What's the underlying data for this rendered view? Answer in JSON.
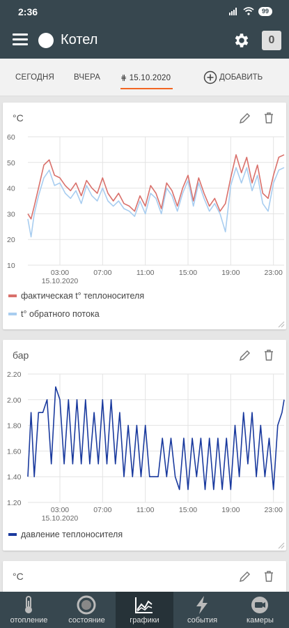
{
  "statusbar": {
    "time": "2:36",
    "battery": "99"
  },
  "appbar": {
    "title": "Котел",
    "counter": "0"
  },
  "tabs": [
    {
      "label": "СЕГОДНЯ"
    },
    {
      "label": "ВЧЕРА"
    },
    {
      "label": "15.10.2020",
      "active": true
    }
  ],
  "add_button": {
    "label": "ДОБАВИТЬ"
  },
  "cards": [
    {
      "unit": "°C",
      "legend": [
        {
          "label": "фактическая t° теплоносителя",
          "color": "#d9706b"
        },
        {
          "label": "t° обратного потока",
          "color": "#a8cdf0"
        }
      ]
    },
    {
      "unit": "бар",
      "legend": [
        {
          "label": "давление теплоносителя",
          "color": "#1a3a9e"
        }
      ]
    },
    {
      "unit": "°C"
    }
  ],
  "chart_data": [
    {
      "type": "line",
      "ylabel": "°C",
      "ylim": [
        10,
        60
      ],
      "yticks": [
        "60",
        "50",
        "40",
        "30",
        "20",
        "10"
      ],
      "xticks": [
        "03:00",
        "07:00",
        "11:00",
        "15:00",
        "19:00",
        "23:00"
      ],
      "xtick_sublabel": "15.10.2020",
      "x_hours": [
        0,
        0.3,
        0.6,
        1,
        1.5,
        2,
        2.5,
        3,
        3.5,
        4,
        4.5,
        5,
        5.5,
        6,
        6.5,
        7,
        7.5,
        8,
        8.5,
        9,
        9.5,
        10,
        10.5,
        11,
        11.5,
        12,
        12.5,
        13,
        13.5,
        14,
        14.5,
        15,
        15.5,
        16,
        16.5,
        17,
        17.5,
        18,
        18.5,
        19,
        19.5,
        20,
        20.5,
        21,
        21.5,
        22,
        22.5,
        23,
        23.5,
        24
      ],
      "series": [
        {
          "name": "фактическая t° теплоносителя",
          "color": "#d9706b",
          "values": [
            30,
            28,
            33,
            40,
            49,
            51,
            45,
            44,
            41,
            39,
            42,
            37,
            43,
            40,
            38,
            44,
            38,
            35,
            38,
            34,
            33,
            31,
            37,
            33,
            41,
            38,
            32,
            42,
            39,
            33,
            40,
            45,
            35,
            44,
            38,
            33,
            36,
            31,
            34,
            44,
            53,
            46,
            52,
            42,
            49,
            38,
            36,
            45,
            52,
            53
          ]
        },
        {
          "name": "t° обратного потока",
          "color": "#a8cdf0",
          "values": [
            28,
            21,
            30,
            37,
            44,
            47,
            41,
            42,
            38,
            36,
            39,
            34,
            41,
            37,
            35,
            40,
            35,
            33,
            35,
            32,
            31,
            29,
            35,
            30,
            38,
            36,
            30,
            40,
            37,
            31,
            38,
            43,
            33,
            42,
            36,
            31,
            34,
            30,
            23,
            41,
            48,
            42,
            48,
            39,
            45,
            34,
            31,
            42,
            47,
            48
          ]
        }
      ]
    },
    {
      "type": "line",
      "ylabel": "бар",
      "ylim": [
        1.2,
        2.2
      ],
      "yticks": [
        "2.20",
        "2.00",
        "1.80",
        "1.60",
        "1.40",
        "1.20"
      ],
      "xticks": [
        "03:00",
        "07:00",
        "11:00",
        "15:00",
        "19:00",
        "23:00"
      ],
      "xtick_sublabel": "15.10.2020",
      "x_hours": [
        0,
        0.3,
        0.6,
        1,
        1.4,
        1.8,
        2.2,
        2.6,
        3,
        3.4,
        3.8,
        4.2,
        4.6,
        5,
        5.4,
        5.8,
        6.2,
        6.6,
        7,
        7.4,
        7.8,
        8.2,
        8.6,
        9,
        9.4,
        9.8,
        10.2,
        10.6,
        11,
        11.4,
        11.8,
        12.2,
        12.6,
        13,
        13.4,
        13.8,
        14.2,
        14.6,
        15,
        15.4,
        15.8,
        16.2,
        16.6,
        17,
        17.4,
        17.8,
        18.2,
        18.6,
        19,
        19.4,
        19.8,
        20.2,
        20.6,
        21,
        21.4,
        21.8,
        22.2,
        22.6,
        23,
        23.4,
        23.8,
        24
      ],
      "series": [
        {
          "name": "давление теплоносителя",
          "color": "#1a3a9e",
          "values": [
            1.4,
            1.9,
            1.4,
            1.9,
            1.9,
            2.0,
            1.5,
            2.1,
            2.0,
            1.5,
            2.0,
            1.5,
            2.0,
            1.5,
            2.0,
            1.5,
            1.9,
            1.5,
            2.0,
            1.5,
            2.0,
            1.5,
            1.9,
            1.4,
            1.8,
            1.4,
            1.8,
            1.4,
            1.8,
            1.4,
            1.4,
            1.4,
            1.7,
            1.4,
            1.7,
            1.4,
            1.3,
            1.7,
            1.3,
            1.7,
            1.4,
            1.7,
            1.3,
            1.7,
            1.3,
            1.7,
            1.3,
            1.7,
            1.3,
            1.8,
            1.4,
            1.9,
            1.5,
            1.9,
            1.4,
            1.8,
            1.4,
            1.7,
            1.3,
            1.8,
            1.9,
            2.0
          ]
        }
      ]
    }
  ],
  "bottom_nav": [
    {
      "label": "отопление",
      "icon": "thermometer-icon"
    },
    {
      "label": "состояние",
      "icon": "status-ring-icon"
    },
    {
      "label": "графики",
      "icon": "chart-icon",
      "active": true
    },
    {
      "label": "события",
      "icon": "lightning-icon"
    },
    {
      "label": "камеры",
      "icon": "camera-icon"
    }
  ]
}
